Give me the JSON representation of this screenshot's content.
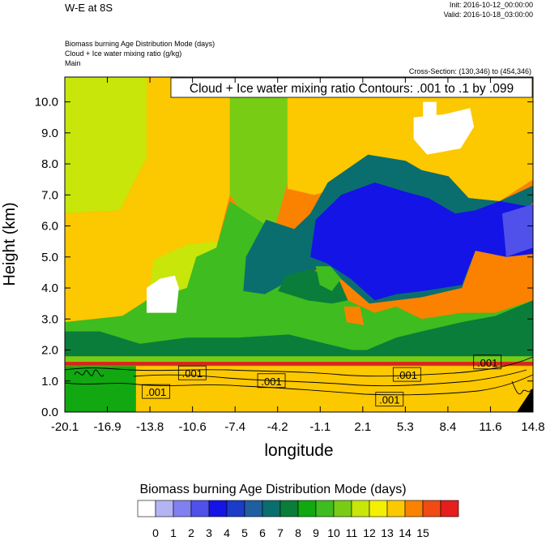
{
  "header": {
    "title": "W-E at 8S",
    "init": "Init: 2016-10-12_00:00:00",
    "valid": "Valid: 2016-10-18_03:00:00",
    "fields": [
      "Biomass burning Age Distribution Mode    (days)",
      "Cloud + Ice water mixing ratio    (g/kg)",
      "Main"
    ],
    "cross_section": "Cross-Section: (130,346) to (454,346)"
  },
  "chart_data": {
    "type": "heatmap",
    "title": "W-E at 8S",
    "xlabel": "longitude",
    "ylabel": "Height (km)",
    "x_ticks": [
      "-20.1",
      "-16.9",
      "-13.8",
      "-10.6",
      "-7.4",
      "-4.2",
      "-1.1",
      "2.1",
      "5.3",
      "8.4",
      "11.6",
      "14.8"
    ],
    "y_ticks": [
      "0.0",
      "1.0",
      "2.0",
      "3.0",
      "4.0",
      "5.0",
      "6.0",
      "7.0",
      "8.0",
      "9.0",
      "10.0"
    ],
    "xlim": [
      -20.1,
      14.8
    ],
    "ylim": [
      0.0,
      10.8
    ],
    "contour_title": "Cloud + Ice water mixing ratio Contours: .001 to .1 by .099",
    "contour_labels": [
      {
        "text": ".001",
        "x": -10.6,
        "y": 1.25
      },
      {
        "text": ".001",
        "x": -13.3,
        "y": 0.65
      },
      {
        "text": ".001",
        "x": -4.7,
        "y": 1.0
      },
      {
        "text": ".001",
        "x": 4.1,
        "y": 0.4
      },
      {
        "text": ".001",
        "x": 5.4,
        "y": 1.2
      },
      {
        "text": ".001",
        "x": 11.4,
        "y": 1.6
      }
    ],
    "colorbar": {
      "title": "Biomass burning Age Distribution Mode  (days)",
      "labels": [
        "0",
        "1",
        "2",
        "3",
        "4",
        "5",
        "6",
        "7",
        "8",
        "9",
        "10",
        "11",
        "12",
        "13",
        "14",
        "15"
      ],
      "colors": [
        "#ffffff",
        "#b4b4f5",
        "#8080f0",
        "#5050ea",
        "#1414e6",
        "#1a3cc8",
        "#1f5fa0",
        "#0b6e6e",
        "#0a7d3a",
        "#11a811",
        "#3fbc1f",
        "#79cc14",
        "#c8e60a",
        "#f5f000",
        "#fcc800",
        "#fa8200",
        "#f04b14",
        "#e61e1e"
      ]
    },
    "regions": [
      {
        "level": 12,
        "points": [
          [
            -20.1,
            10.8
          ],
          [
            -14.0,
            10.8
          ],
          [
            -14.0,
            8.2
          ],
          [
            -16.0,
            6.5
          ],
          [
            -20.1,
            6.4
          ]
        ]
      },
      {
        "level": 14,
        "points": [
          [
            -20.1,
            6.4
          ],
          [
            -16.0,
            6.5
          ],
          [
            -14.0,
            8.2
          ],
          [
            -14.0,
            10.8
          ],
          [
            -3.5,
            10.8
          ],
          [
            -3.5,
            7.5
          ],
          [
            -7.8,
            7.0
          ],
          [
            -8.8,
            5.3
          ],
          [
            -10.3,
            5.0
          ],
          [
            -11.0,
            4.0
          ],
          [
            -14.0,
            3.6
          ],
          [
            -15.8,
            3.1
          ],
          [
            -20.1,
            2.9
          ]
        ]
      },
      {
        "level": 11,
        "points": [
          [
            -7.8,
            10.8
          ],
          [
            -3.5,
            10.8
          ],
          [
            -3.5,
            7.4
          ],
          [
            -4.4,
            6.0
          ],
          [
            -6.5,
            6.2
          ],
          [
            -7.8,
            7.0
          ]
        ]
      },
      {
        "level": 14,
        "points": [
          [
            -3.5,
            10.8
          ],
          [
            14.8,
            10.8
          ],
          [
            14.8,
            7.5
          ],
          [
            12.3,
            6.8
          ],
          [
            10.0,
            6.9
          ],
          [
            8.5,
            7.6
          ],
          [
            6.5,
            7.8
          ],
          [
            4.0,
            8.0
          ],
          [
            1.0,
            7.3
          ],
          [
            -1.5,
            7.0
          ],
          [
            -3.5,
            7.2
          ]
        ]
      },
      {
        "level": 12,
        "points": [
          [
            -11.0,
            5.4
          ],
          [
            -8.8,
            5.5
          ],
          [
            -8.0,
            4.5
          ],
          [
            -10.4,
            3.8
          ],
          [
            -12.5,
            3.6
          ],
          [
            -13.8,
            3.9
          ],
          [
            -13.5,
            4.9
          ]
        ]
      },
      {
        "level": 10,
        "points": [
          [
            -20.1,
            2.9
          ],
          [
            -15.8,
            3.1
          ],
          [
            -14.0,
            3.6
          ],
          [
            -11.0,
            4.0
          ],
          [
            -10.3,
            5.0
          ],
          [
            -8.8,
            5.3
          ],
          [
            -7.8,
            6.8
          ],
          [
            -5.0,
            6.0
          ],
          [
            -3.0,
            5.0
          ],
          [
            -1.5,
            4.0
          ],
          [
            -0.6,
            4.3
          ],
          [
            1.0,
            3.6
          ],
          [
            3.0,
            3.2
          ],
          [
            4.6,
            3.4
          ],
          [
            6.5,
            3.0
          ],
          [
            9.5,
            3.2
          ],
          [
            12.0,
            3.2
          ],
          [
            14.8,
            3.6
          ],
          [
            14.8,
            1.5
          ],
          [
            -20.1,
            1.5
          ]
        ]
      },
      {
        "level": 8,
        "points": [
          [
            -20.1,
            1.5
          ],
          [
            14.8,
            1.5
          ],
          [
            14.8,
            3.6
          ],
          [
            12.0,
            3.1
          ],
          [
            9.5,
            2.9
          ],
          [
            6.5,
            2.6
          ],
          [
            4.6,
            2.4
          ],
          [
            2.4,
            2.0
          ],
          [
            1.3,
            2.0
          ],
          [
            -0.6,
            2.2
          ],
          [
            -3.4,
            2.5
          ],
          [
            -7.2,
            2.4
          ],
          [
            -11.0,
            2.4
          ],
          [
            -14.5,
            2.2
          ],
          [
            -17.5,
            2.6
          ],
          [
            -20.1,
            2.6
          ]
        ]
      },
      {
        "level": 7,
        "points": [
          [
            -5.1,
            6.2
          ],
          [
            -3.0,
            5.9
          ],
          [
            -1.8,
            6.4
          ],
          [
            -0.5,
            7.4
          ],
          [
            2.5,
            8.3
          ],
          [
            5.3,
            8.1
          ],
          [
            6.5,
            7.8
          ],
          [
            8.5,
            7.6
          ],
          [
            10.0,
            6.9
          ],
          [
            12.3,
            6.8
          ],
          [
            14.8,
            7.3
          ],
          [
            14.8,
            6.8
          ],
          [
            12.8,
            5.1
          ],
          [
            10.5,
            5.2
          ],
          [
            9.5,
            4.0
          ],
          [
            6.5,
            3.7
          ],
          [
            4.6,
            3.6
          ],
          [
            2.6,
            3.5
          ],
          [
            1.0,
            4.1
          ],
          [
            -0.6,
            4.7
          ],
          [
            -3.1,
            4.3
          ],
          [
            -5.2,
            3.8
          ],
          [
            -6.8,
            3.9
          ],
          [
            -6.6,
            5.0
          ]
        ]
      },
      {
        "level": 4,
        "points": [
          [
            -1.4,
            6.2
          ],
          [
            0.5,
            7.0
          ],
          [
            3.0,
            7.4
          ],
          [
            5.3,
            7.1
          ],
          [
            7.0,
            6.9
          ],
          [
            9.0,
            6.4
          ],
          [
            10.5,
            6.5
          ],
          [
            12.3,
            6.8
          ],
          [
            14.8,
            6.6
          ],
          [
            14.8,
            5.1
          ],
          [
            12.8,
            5.0
          ],
          [
            10.5,
            5.2
          ],
          [
            9.5,
            4.1
          ],
          [
            6.6,
            3.9
          ],
          [
            4.6,
            3.8
          ],
          [
            3.0,
            3.6
          ],
          [
            1.2,
            4.3
          ],
          [
            -0.6,
            4.8
          ],
          [
            -1.8,
            5.0
          ]
        ]
      },
      {
        "level": 3,
        "points": [
          [
            12.5,
            6.4
          ],
          [
            14.8,
            6.7
          ],
          [
            14.8,
            5.3
          ],
          [
            12.8,
            5.0
          ]
        ]
      },
      {
        "level": 8,
        "points": [
          [
            -4.2,
            3.9
          ],
          [
            -2.0,
            3.6
          ],
          [
            -0.2,
            3.5
          ],
          [
            1.0,
            3.6
          ],
          [
            0.3,
            4.3
          ],
          [
            -1.8,
            4.6
          ],
          [
            -3.6,
            4.4
          ]
        ]
      },
      {
        "level": 10,
        "points": [
          [
            -1.4,
            4.7
          ],
          [
            -0.3,
            4.7
          ],
          [
            0.5,
            4.3
          ],
          [
            -0.2,
            3.9
          ],
          [
            -1.1,
            4.1
          ]
        ]
      },
      {
        "level": 15,
        "points": [
          [
            0.7,
            3.4
          ],
          [
            1.9,
            3.4
          ],
          [
            2.2,
            2.8
          ],
          [
            0.9,
            2.9
          ]
        ]
      },
      {
        "level": 0,
        "points": [
          [
            -14.0,
            4.0
          ],
          [
            -13.0,
            4.3
          ],
          [
            -11.9,
            4.4
          ],
          [
            -11.6,
            4.0
          ],
          [
            -11.8,
            3.2
          ],
          [
            -14.0,
            3.2
          ]
        ]
      },
      {
        "level": 0,
        "points": [
          [
            5.9,
            9.5
          ],
          [
            8.2,
            9.6
          ],
          [
            10.1,
            9.8
          ],
          [
            10.4,
            9.2
          ],
          [
            9.4,
            8.5
          ],
          [
            6.9,
            8.3
          ],
          [
            5.9,
            8.8
          ]
        ]
      },
      {
        "level": 0,
        "points": [
          [
            6.6,
            10.0
          ],
          [
            7.6,
            10.0
          ],
          [
            7.6,
            9.5
          ],
          [
            6.6,
            9.5
          ]
        ]
      },
      {
        "level": 11,
        "points": [
          [
            -20.1,
            1.8
          ],
          [
            14.8,
            1.8
          ],
          [
            14.8,
            1.55
          ],
          [
            -20.1,
            1.55
          ]
        ]
      },
      {
        "level": 14,
        "points": [
          [
            -14.8,
            1.48
          ],
          [
            14.8,
            1.48
          ],
          [
            14.8,
            0.0
          ],
          [
            -14.8,
            0.0
          ]
        ]
      },
      {
        "level": 9,
        "points": [
          [
            -20.1,
            1.48
          ],
          [
            -14.8,
            1.48
          ],
          [
            -14.8,
            0.0
          ],
          [
            -20.1,
            0.0
          ]
        ]
      },
      {
        "level": 17,
        "points": [
          [
            -20.1,
            1.62
          ],
          [
            14.8,
            1.62
          ],
          [
            14.8,
            1.52
          ],
          [
            -20.1,
            1.52
          ]
        ]
      }
    ]
  }
}
